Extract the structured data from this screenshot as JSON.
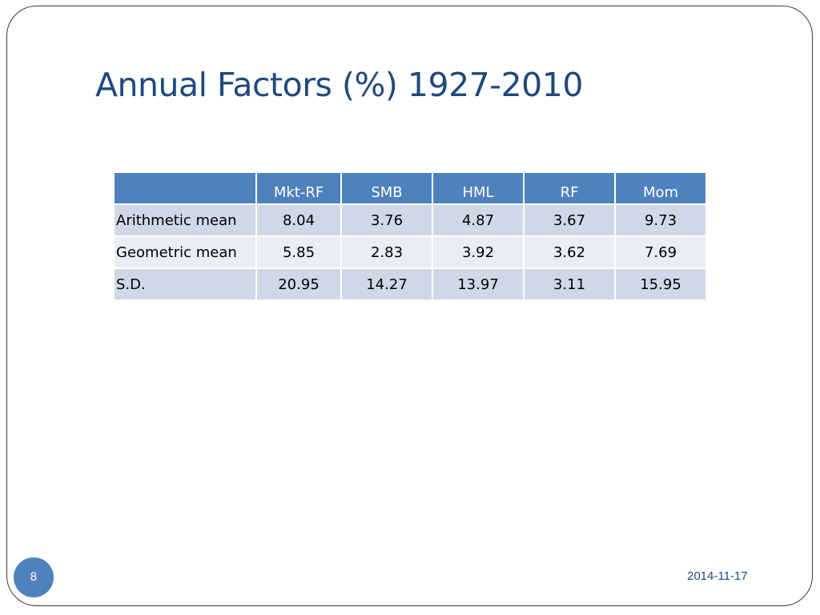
{
  "slide": {
    "title": "Annual Factors (%) 1927-2010",
    "page_number": "8",
    "date": "2014-11-17"
  },
  "table": {
    "corner": "",
    "headers": [
      "Mkt-RF",
      "SMB",
      "HML",
      "RF",
      "Mom"
    ],
    "rows": [
      {
        "label": "Arithmetic mean",
        "values": [
          "8.04",
          "3.76",
          "4.87",
          "3.67",
          "9.73"
        ]
      },
      {
        "label": "Geometric mean",
        "values": [
          "5.85",
          "2.83",
          "3.92",
          "3.62",
          "7.69"
        ]
      },
      {
        "label": "S.D.",
        "values": [
          "20.95",
          "14.27",
          "13.97",
          "3.11",
          "15.95"
        ]
      }
    ]
  },
  "colors": {
    "title": "#1f497d",
    "header_bg": "#4f81bd",
    "row_band_dark": "#d0d8e8",
    "row_band_light": "#e9edf4",
    "badge_bg": "#4f81bd"
  }
}
